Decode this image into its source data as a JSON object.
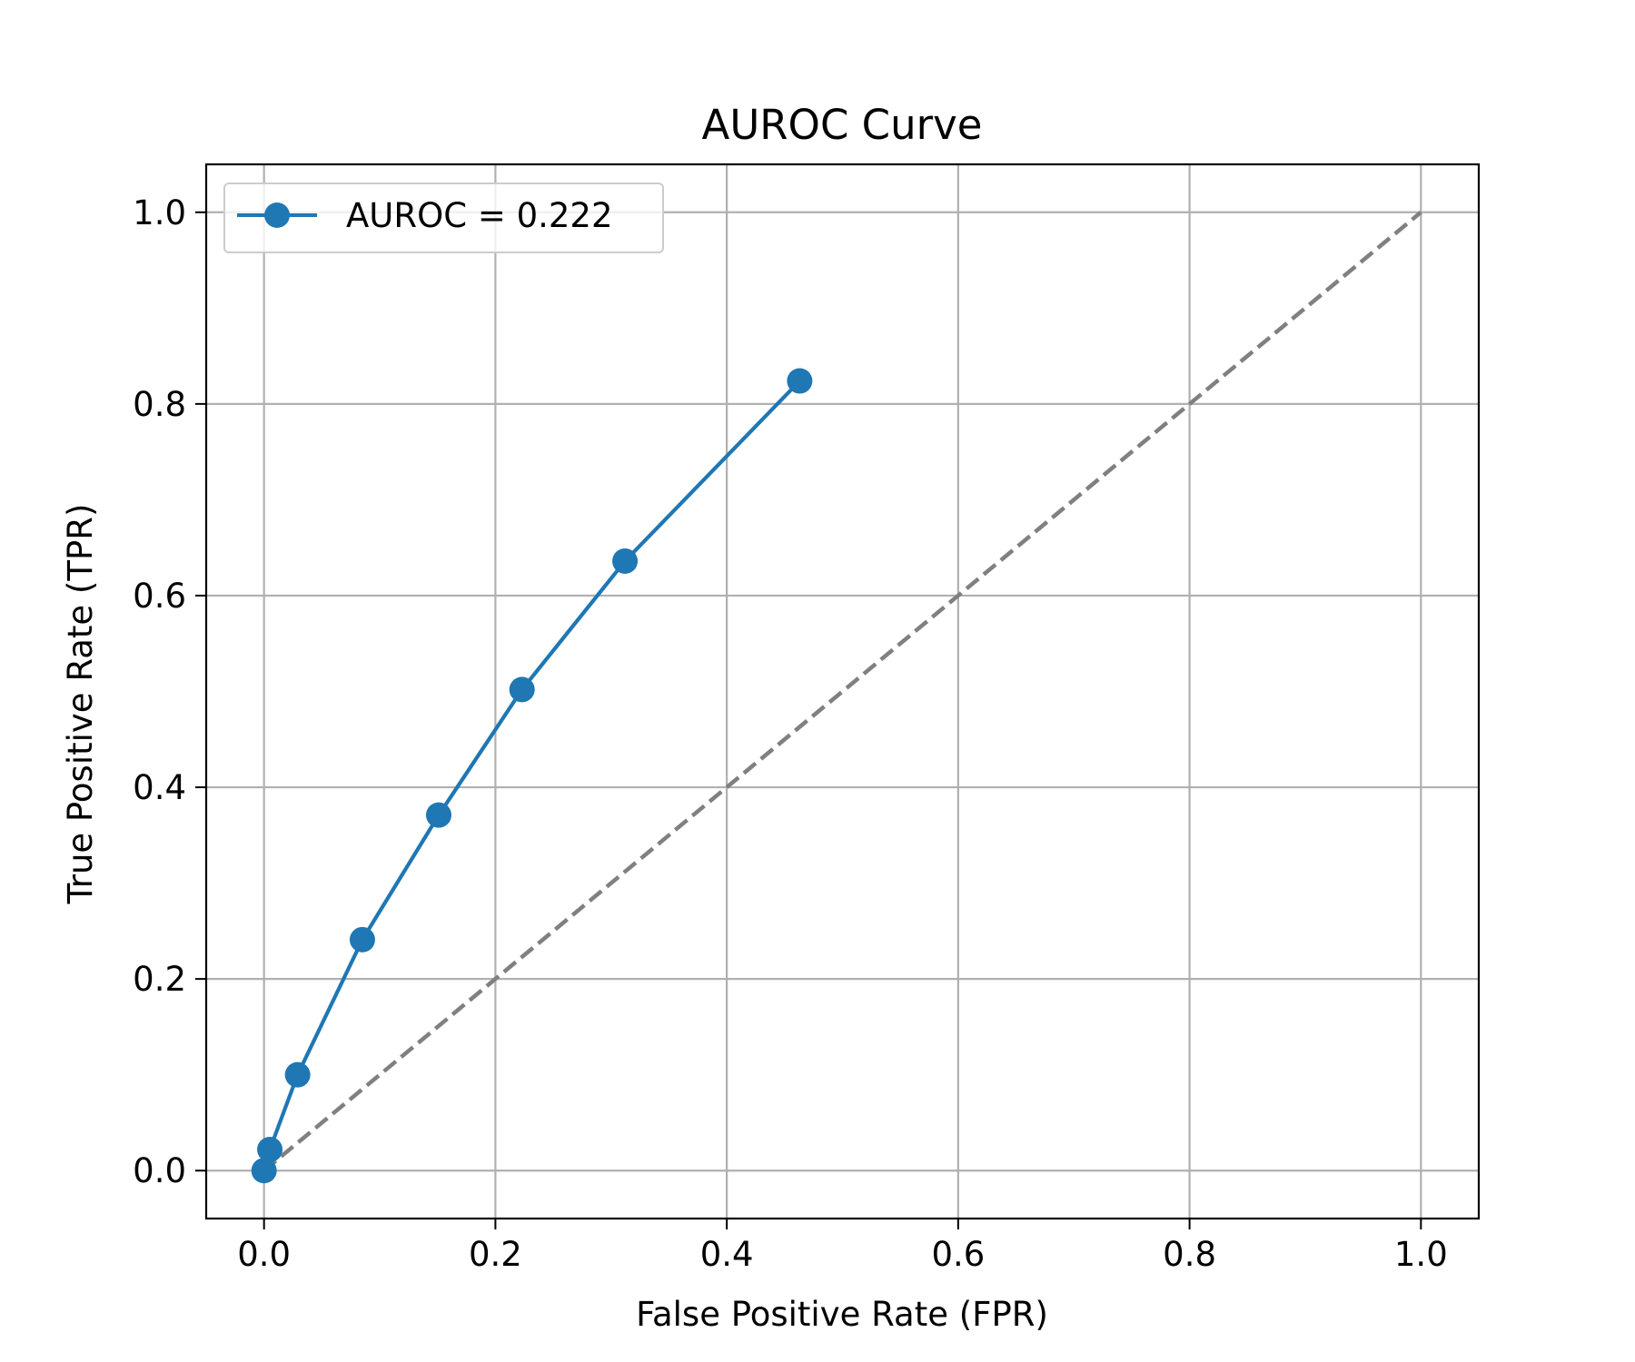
{
  "chart_data": {
    "type": "line",
    "title": "AUROC Curve",
    "xlabel": "False Positive Rate (FPR)",
    "ylabel": "True Positive Rate (TPR)",
    "xlim": [
      -0.05,
      1.05
    ],
    "ylim": [
      -0.05,
      1.05
    ],
    "xticks": [
      0.0,
      0.2,
      0.4,
      0.6,
      0.8,
      1.0
    ],
    "yticks": [
      0.0,
      0.2,
      0.4,
      0.6,
      0.8,
      1.0
    ],
    "xtick_labels": [
      "0.0",
      "0.2",
      "0.4",
      "0.6",
      "0.8",
      "1.0"
    ],
    "ytick_labels": [
      "0.0",
      "0.2",
      "0.4",
      "0.6",
      "0.8",
      "1.0"
    ],
    "grid": true,
    "legend_position": "top-left",
    "series": [
      {
        "name": "AUROC = 0.222",
        "color": "#1f77b4",
        "marker": "circle",
        "x": [
          0.0,
          0.005,
          0.029,
          0.085,
          0.151,
          0.223,
          0.312,
          0.463
        ],
        "y": [
          0.0,
          0.022,
          0.1,
          0.241,
          0.371,
          0.502,
          0.636,
          0.824
        ]
      }
    ],
    "reference_line": {
      "color": "#808080",
      "style": "dashed",
      "x": [
        0.0,
        1.0
      ],
      "y": [
        0.0,
        1.0
      ]
    }
  }
}
